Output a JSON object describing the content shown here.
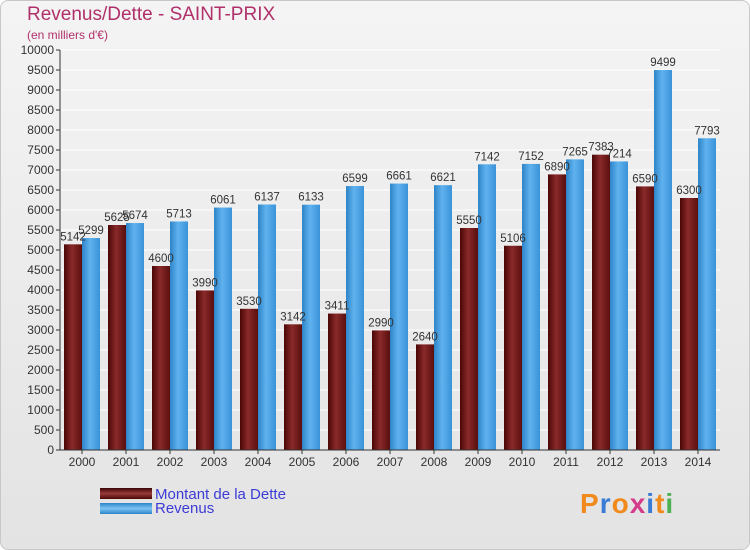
{
  "header": {
    "title": "Revenus/Dette - SAINT-PRIX",
    "subtitle": "(en milliers d'€)"
  },
  "logo": {
    "text": "Proxiti",
    "letter_colors": [
      "#f08a1c",
      "#3a7bd5",
      "#f08a1c",
      "#d43b8b",
      "#3a7bd5",
      "#f08a1c",
      "#4caf50"
    ]
  },
  "colors": {
    "dette": "#7a1a1a",
    "revenus": "#4aa3e6",
    "grid": "#ffffff",
    "axis": "#333333"
  },
  "chart_data": {
    "type": "bar",
    "categories": [
      "2000",
      "2001",
      "2002",
      "2003",
      "2004",
      "2005",
      "2006",
      "2007",
      "2008",
      "2009",
      "2010",
      "2011",
      "2012",
      "2013",
      "2014"
    ],
    "series": [
      {
        "name": "Montant de la Dette",
        "values": [
          5142,
          5625,
          4600,
          3990,
          3530,
          3142,
          3411,
          2990,
          2640,
          5550,
          5106,
          6890,
          7383,
          6590,
          6300
        ],
        "labels": [
          "5142",
          "5625",
          "4600",
          "3990",
          "3530",
          "3142",
          "3411",
          "2990",
          "2640",
          "5550",
          "5106",
          "6890",
          "7383",
          "6590",
          "6300"
        ]
      },
      {
        "name": "Revenus",
        "values": [
          5299,
          5674,
          5713,
          6061,
          6137,
          6133,
          6599,
          6661,
          6621,
          7142,
          7152,
          7265,
          7214,
          9499,
          7793
        ],
        "labels": [
          "5299",
          "5674",
          "5713",
          "6061",
          "6137",
          "6133",
          "6599",
          "6661",
          "6621",
          "7142",
          "7152",
          "7265",
          "7214",
          "9499",
          "7793"
        ]
      }
    ],
    "yticks": [
      "0",
      "500",
      "1000",
      "1500",
      "2000",
      "2500",
      "3000",
      "3500",
      "4000",
      "4500",
      "5000",
      "5500",
      "6000",
      "6500",
      "7000",
      "7500",
      "8000",
      "8500",
      "9000",
      "9500",
      "10000"
    ],
    "ylim": [
      0,
      10000
    ],
    "grid": true,
    "legend_position": "bottom-left"
  }
}
